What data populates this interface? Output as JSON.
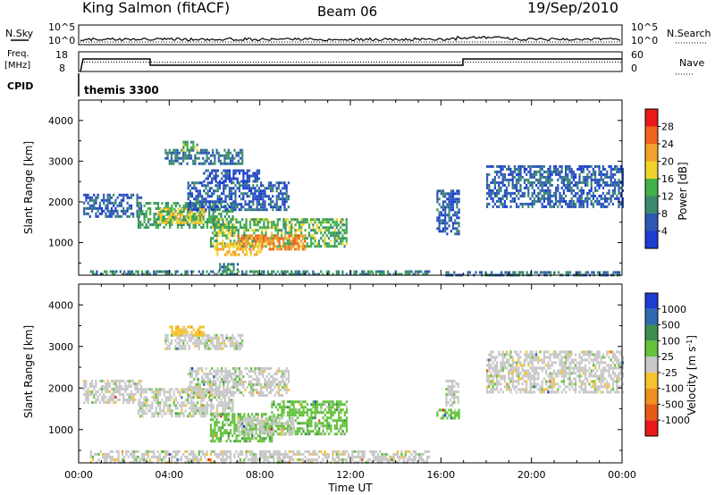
{
  "header": {
    "station": "King Salmon (fitACF)",
    "beam": "Beam 06",
    "date": "19/Sep/2010"
  },
  "status_panels": {
    "nsky_label": "N.Sky",
    "nsearch_label": "N.Search",
    "freq_label_top": "Freq.",
    "freq_label_bottom": "[MHz]",
    "nave_label": "Nave",
    "cpid_label": "CPID",
    "cpid_value": "themis 3300",
    "left_ticks_top": [
      "10^5",
      "10^0"
    ],
    "right_ticks_top": [
      "10^5",
      "10^0"
    ],
    "left_ticks_freq": [
      "18",
      "8"
    ],
    "right_ticks_nave": [
      "60",
      "0"
    ]
  },
  "chart_data": [
    {
      "type": "heatmap",
      "quantity": "Power",
      "ylabel": "Slant Range [km]",
      "ylim": [
        200,
        4500
      ],
      "yticks": [
        1000,
        2000,
        3000,
        4000
      ],
      "x_hours": [
        0,
        24
      ],
      "colorbar_label": "Power [dB]",
      "colorbar_ticks": [
        "4",
        "8",
        "12",
        "16",
        "20",
        "24",
        "28"
      ],
      "colorbar_colors": [
        "#1c3cd2",
        "#2c58b4",
        "#3a8a6e",
        "#41b14a",
        "#f1d32c",
        "#f2a22b",
        "#f2641f",
        "#e81919"
      ],
      "regions": [
        {
          "h0": 0.2,
          "h1": 2.8,
          "r0": 1650,
          "r1": 2200,
          "v": 6
        },
        {
          "h0": 2.6,
          "h1": 6.8,
          "r0": 1350,
          "r1": 2000,
          "v": 12
        },
        {
          "h0": 3.5,
          "h1": 5.5,
          "r0": 1500,
          "r1": 1850,
          "v": 18
        },
        {
          "h0": 4.8,
          "h1": 9.3,
          "r0": 1800,
          "r1": 2500,
          "v": 6
        },
        {
          "h0": 5.5,
          "h1": 8.0,
          "r0": 2500,
          "r1": 2800,
          "v": 5
        },
        {
          "h0": 3.8,
          "h1": 7.2,
          "r0": 2950,
          "r1": 3300,
          "v": 8
        },
        {
          "h0": 4.5,
          "h1": 5.2,
          "r0": 3250,
          "r1": 3500,
          "v": 14
        },
        {
          "h0": 5.8,
          "h1": 11.8,
          "r0": 900,
          "r1": 1600,
          "v": 14
        },
        {
          "h0": 7.0,
          "h1": 10.0,
          "r0": 850,
          "r1": 1200,
          "v": 24
        },
        {
          "h0": 6.0,
          "h1": 8.0,
          "r0": 700,
          "r1": 1000,
          "v": 20
        },
        {
          "h0": 6.2,
          "h1": 7.0,
          "r0": 350,
          "r1": 500,
          "v": 10
        },
        {
          "h0": 0.5,
          "h1": 15.5,
          "r0": 200,
          "r1": 320,
          "v": 10
        },
        {
          "h0": 15.8,
          "h1": 16.8,
          "r0": 1200,
          "r1": 2300,
          "v": 6
        },
        {
          "h0": 18.0,
          "h1": 24.0,
          "r0": 1900,
          "r1": 2900,
          "v": 6
        },
        {
          "h0": 16.2,
          "h1": 24.0,
          "r0": 200,
          "r1": 300,
          "v": 8
        }
      ]
    },
    {
      "type": "heatmap",
      "quantity": "Velocity",
      "ylabel": "Slant Range [km]",
      "xlabel": "Time UT",
      "ylim": [
        200,
        4500
      ],
      "yticks": [
        1000,
        2000,
        3000,
        4000
      ],
      "x_hours": [
        0,
        24
      ],
      "xticks": [
        "00:00",
        "04:00",
        "08:00",
        "12:00",
        "16:00",
        "20:00",
        "00:00"
      ],
      "colorbar_label": "Velocity [m s",
      "colorbar_label_exp": "-1",
      "colorbar_label_end": "]",
      "colorbar_ticks": [
        "1000",
        "500",
        "100",
        "25",
        "-25",
        "-100",
        "-500",
        "-1000"
      ],
      "colorbar_colors": [
        "#1c3cd2",
        "#2f6ab0",
        "#3f8e50",
        "#64c23c",
        "#c8c8c8",
        "#f5c32d",
        "#f0901e",
        "#e85a14",
        "#e81919"
      ],
      "regions": [
        {
          "h0": 0.2,
          "h1": 2.8,
          "r0": 1650,
          "r1": 2200,
          "v": 4
        },
        {
          "h0": 2.6,
          "h1": 6.8,
          "r0": 1350,
          "r1": 2000,
          "v": 4
        },
        {
          "h0": 4.8,
          "h1": 9.3,
          "r0": 1800,
          "r1": 2500,
          "v": 4
        },
        {
          "h0": 3.8,
          "h1": 7.2,
          "r0": 2950,
          "r1": 3300,
          "v": 4
        },
        {
          "h0": 5.8,
          "h1": 8.5,
          "r0": 750,
          "r1": 1400,
          "v": 3
        },
        {
          "h0": 8.5,
          "h1": 11.8,
          "r0": 900,
          "r1": 1700,
          "v": 3
        },
        {
          "h0": 7.0,
          "h1": 9.5,
          "r0": 900,
          "r1": 1300,
          "v": 4
        },
        {
          "h0": 0.5,
          "h1": 15.5,
          "r0": 200,
          "r1": 500,
          "v": 4
        },
        {
          "h0": 15.8,
          "h1": 16.8,
          "r0": 1250,
          "r1": 1500,
          "v": 3
        },
        {
          "h0": 16.2,
          "h1": 16.8,
          "r0": 1600,
          "r1": 2200,
          "v": 4
        },
        {
          "h0": 18.0,
          "h1": 24.0,
          "r0": 1900,
          "r1": 2900,
          "v": 4
        },
        {
          "h0": 4.0,
          "h1": 5.5,
          "r0": 3300,
          "r1": 3500,
          "v": 5
        }
      ]
    }
  ]
}
